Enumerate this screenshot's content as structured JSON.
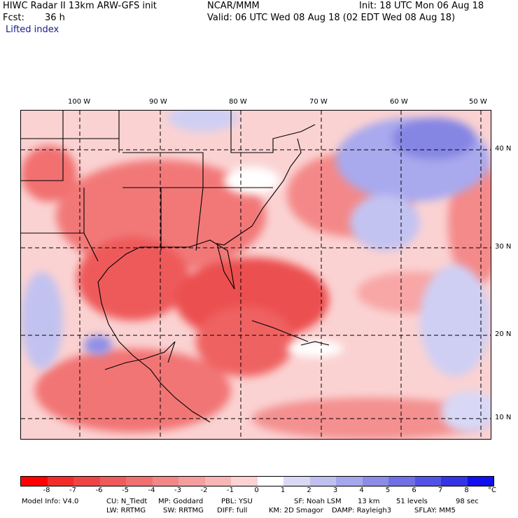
{
  "header": {
    "title": "HIWC Radar II 13km ARW-GFS init",
    "org": "NCAR/MMM",
    "init": "Init: 18 UTC Mon 06 Aug 18",
    "fcst_label": "Fcst:",
    "fcst_value": "36 h",
    "valid": "Valid: 06 UTC Wed 08 Aug 18 (02 EDT Wed 08 Aug 18)",
    "field": "Lifted index"
  },
  "map": {
    "longitude_labels": [
      "100 W",
      "90 W",
      "80 W",
      "70 W",
      "60 W",
      "50 W"
    ],
    "latitude_labels": [
      "40 N",
      "30 N",
      "20 N",
      "10 N"
    ],
    "projection_note": "lat/lon dashed grid, state/country boundaries",
    "colors": {
      "neg_strong": "#e11e1e",
      "neg_mid": "#f06a6a",
      "neg_light": "#fbc6c6",
      "neutral": "#ffffff",
      "pos_light": "#c8c8f2",
      "pos_mid": "#8f8fe6",
      "pos_strong": "#1e1ee6"
    }
  },
  "colorbar": {
    "labels": [
      "-8",
      "-7",
      "-6",
      "-5",
      "-4",
      "-3",
      "-2",
      "-1",
      "0",
      "1",
      "2",
      "3",
      "4",
      "5",
      "6",
      "7",
      "8"
    ],
    "unit": "°C",
    "colors": [
      "#ff0000",
      "#f32a2a",
      "#f04444",
      "#ef5a5a",
      "#f07070",
      "#f38686",
      "#f69d9d",
      "#f9b5b5",
      "#fcd2d2",
      "#ffffff",
      "#d9d9f5",
      "#c0c0f0",
      "#a6a6ec",
      "#8c8ce8",
      "#7070e6",
      "#5252e6",
      "#3434e6",
      "#1010ee"
    ]
  },
  "footer": {
    "line1": [
      "Model Info: V4.0",
      "CU: N_Tiedt",
      "MP: Goddard",
      "PBL: YSU",
      "SF: Noah LSM",
      "13 km",
      "51 levels",
      "98 sec"
    ],
    "line2": [
      "LW: RRTMG",
      "SW: RRTMG",
      "DIFF: full",
      "KM: 2D Smagor",
      "DAMP: Rayleigh3",
      "SFLAY: MM5"
    ]
  }
}
